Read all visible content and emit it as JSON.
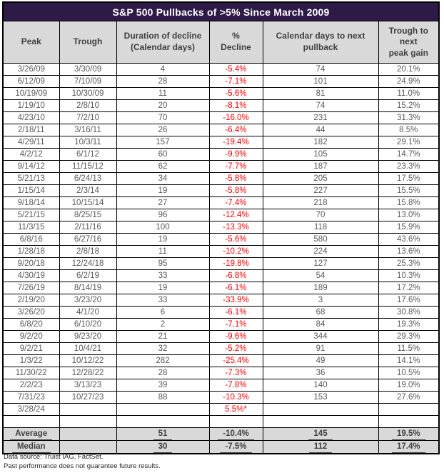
{
  "title": "S&P 500 Pullbacks of >5% Since March 2009",
  "columns": [
    "Peak",
    "Trough",
    "Duration of decline\n(Calendar days)",
    "%\nDecline",
    "Calendar days to next\npullback",
    "Trough to\nnext\npeak gain"
  ],
  "rows": [
    [
      "3/26/09",
      "3/30/09",
      "4",
      "-5.4%",
      "74",
      "20.1%"
    ],
    [
      "6/12/09",
      "7/10/09",
      "28",
      "-7.1%",
      "101",
      "24.9%"
    ],
    [
      "10/19/09",
      "10/30/09",
      "11",
      "-5.6%",
      "81",
      "11.0%"
    ],
    [
      "1/19/10",
      "2/8/10",
      "20",
      "-8.1%",
      "74",
      "15.2%"
    ],
    [
      "4/23/10",
      "7/2/10",
      "70",
      "-16.0%",
      "231",
      "31.3%"
    ],
    [
      "2/18/11",
      "3/16/11",
      "26",
      "-6.4%",
      "44",
      "8.5%"
    ],
    [
      "4/29/11",
      "10/3/11",
      "157",
      "-19.4%",
      "182",
      "29.1%"
    ],
    [
      "4/2/12",
      "6/1/12",
      "60",
      "-9.9%",
      "105",
      "14.7%"
    ],
    [
      "9/14/12",
      "11/15/12",
      "62",
      "-7.7%",
      "187",
      "23.3%"
    ],
    [
      "5/21/13",
      "6/24/13",
      "34",
      "-5.8%",
      "205",
      "17.5%"
    ],
    [
      "1/15/14",
      "2/3/14",
      "19",
      "-5.8%",
      "227",
      "15.5%"
    ],
    [
      "9/18/14",
      "10/15/14",
      "27",
      "-7.4%",
      "218",
      "15.8%"
    ],
    [
      "5/21/15",
      "8/25/15",
      "96",
      "-12.4%",
      "70",
      "13.0%"
    ],
    [
      "11/3/15",
      "2/11/16",
      "100",
      "-13.3%",
      "118",
      "15.9%"
    ],
    [
      "6/8/16",
      "6/27/16",
      "19",
      "-5.6%",
      "580",
      "43.6%"
    ],
    [
      "1/28/18",
      "2/8/18",
      "11",
      "-10.2%",
      "224",
      "13.6%"
    ],
    [
      "9/20/18",
      "12/24/18",
      "95",
      "-19.8%",
      "127",
      "25.3%"
    ],
    [
      "4/30/19",
      "6/2/19",
      "33",
      "-6.8%",
      "54",
      "10.3%"
    ],
    [
      "7/26/19",
      "8/14/19",
      "19",
      "-6.1%",
      "189",
      "17.2%"
    ],
    [
      "2/19/20",
      "3/23/20",
      "33",
      "-33.9%",
      "3",
      "17.6%"
    ],
    [
      "3/26/20",
      "4/1/20",
      "6",
      "-6.1%",
      "68",
      "30.8%"
    ],
    [
      "6/8/20",
      "6/10/20",
      "2",
      "-7.1%",
      "84",
      "19.3%"
    ],
    [
      "9/2/20",
      "9/23/20",
      "21",
      "-9.6%",
      "344",
      "29.3%"
    ],
    [
      "9/2/21",
      "10/4/21",
      "32",
      "-5.2%",
      "91",
      "11.5%"
    ],
    [
      "1/3/22",
      "10/12/22",
      "282",
      "-25.4%",
      "49",
      "14.1%"
    ],
    [
      "11/30/22",
      "12/28/22",
      "28",
      "-7.3%",
      "36",
      "10.5%"
    ],
    [
      "2/2/23",
      "3/13/23",
      "39",
      "-7.8%",
      "140",
      "19.0%"
    ],
    [
      "7/31/23",
      "10/27/23",
      "88",
      "-10.3%",
      "153",
      "27.6%"
    ],
    [
      "3/28/24",
      "",
      "",
      "5.5%*",
      "",
      ""
    ],
    [
      "",
      "",
      "",
      "",
      "",
      ""
    ]
  ],
  "summary": [
    {
      "label": "Average",
      "duration": "51",
      "decline": "-10.4%",
      "next_days": "145",
      "gain": "19.5%"
    },
    {
      "label": "Median",
      "duration": "30",
      "decline": "-7.5%",
      "next_days": "112",
      "gain": "17.4%"
    }
  ],
  "footnotes": [
    "Data source: Truist IAG, FactSet.",
    "Past performance does not guarantee future results."
  ],
  "colors": {
    "title_bg": "#2e1a47",
    "header_bg": "#d9d9d9",
    "decline_red": "#ff0000"
  }
}
